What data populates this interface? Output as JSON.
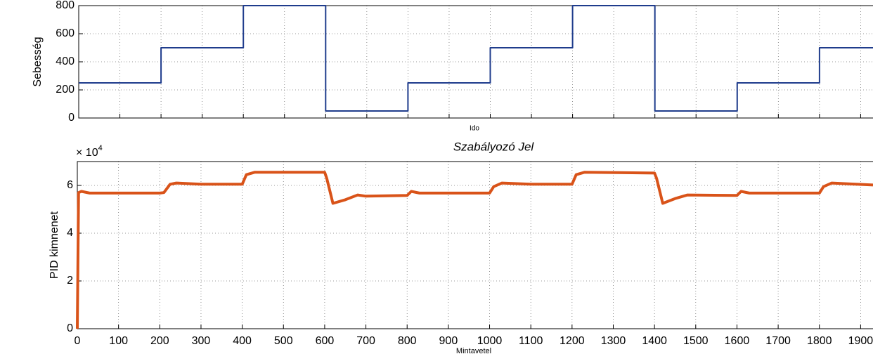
{
  "chart_data": [
    {
      "type": "line",
      "ylabel": "Sebesség",
      "xlabel": "Ido",
      "x": [
        0,
        200,
        400,
        600,
        800,
        1000,
        1200,
        1400,
        1600,
        1800,
        1930
      ],
      "series": [
        {
          "color": "#1f3c8c",
          "values": [
            250,
            500,
            800,
            50,
            250,
            500,
            800,
            50,
            250,
            500,
            500
          ]
        }
      ],
      "step": "post",
      "xlim": [
        0,
        1930
      ],
      "ylim": [
        0,
        800
      ],
      "xticks": [
        0,
        100,
        200,
        300,
        400,
        500,
        600,
        700,
        800,
        900,
        1000,
        1100,
        1200,
        1300,
        1400,
        1500,
        1600,
        1700,
        1800,
        1900
      ],
      "show_xtick_labels": false,
      "yticks": [
        0,
        200,
        400,
        600,
        800
      ],
      "grid": true
    },
    {
      "type": "line",
      "title": "Szabályozó Jel",
      "ylabel": "PID kimnenet",
      "xlabel": "Mintavetel",
      "y_multiplier": {
        "base": "× 10",
        "exponent": "4"
      },
      "x": [
        0,
        3,
        10,
        30,
        200,
        210,
        225,
        240,
        300,
        400,
        410,
        430,
        600,
        605,
        620,
        650,
        680,
        700,
        800,
        810,
        830,
        1000,
        1010,
        1030,
        1100,
        1200,
        1210,
        1230,
        1400,
        1405,
        1420,
        1450,
        1480,
        1600,
        1610,
        1630,
        1800,
        1810,
        1830,
        1930
      ],
      "series": [
        {
          "color": "#d95319",
          "values": [
            0,
            57000,
            57500,
            56800,
            56800,
            57000,
            60500,
            61000,
            60500,
            60500,
            64500,
            65500,
            65500,
            63000,
            52500,
            54000,
            56000,
            55500,
            55800,
            57500,
            56800,
            56800,
            59500,
            61000,
            60500,
            60500,
            64500,
            65500,
            65200,
            63000,
            52500,
            54500,
            56000,
            55800,
            57500,
            56800,
            56800,
            59500,
            61000,
            60200
          ]
        }
      ],
      "xlim": [
        0,
        1930
      ],
      "ylim": [
        0,
        70000
      ],
      "xticks": [
        0,
        100,
        200,
        300,
        400,
        500,
        600,
        700,
        800,
        900,
        1000,
        1100,
        1200,
        1300,
        1400,
        1500,
        1600,
        1700,
        1800,
        1900
      ],
      "show_xtick_labels": true,
      "yticks": [
        {
          "value": 0,
          "label": "0"
        },
        {
          "value": 20000,
          "label": "2"
        },
        {
          "value": 40000,
          "label": "4"
        },
        {
          "value": 60000,
          "label": "6"
        }
      ],
      "grid": true
    }
  ]
}
